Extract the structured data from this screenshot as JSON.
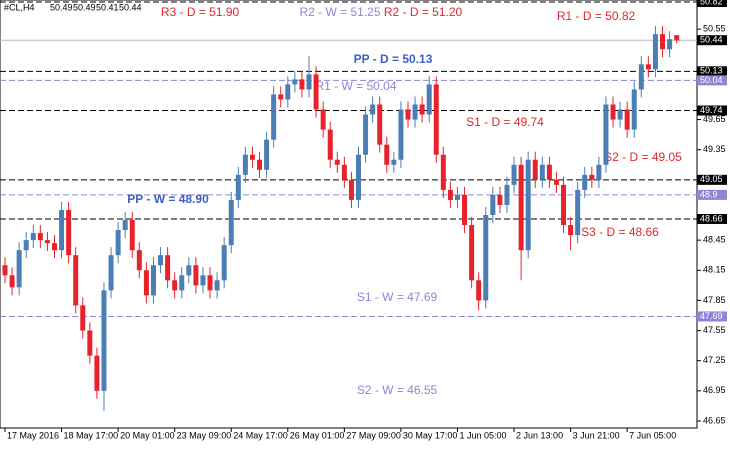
{
  "chart_data": {
    "type": "candlestick",
    "symbol": "#CL,H4",
    "bull_color": "#4a7eb5",
    "bear_color": "#e8222a",
    "categories": [
      "17 May 2016",
      null,
      null,
      null,
      null,
      null,
      null,
      null,
      "18 May 17:00",
      null,
      null,
      null,
      null,
      null,
      null,
      null,
      "20 May 01:00",
      null,
      null,
      null,
      null,
      null,
      null,
      null,
      "23 May 09:00",
      null,
      null,
      null,
      null,
      null,
      null,
      null,
      "24 May 17:00",
      null,
      null,
      null,
      null,
      null,
      null,
      null,
      "26 May 01:00",
      null,
      null,
      null,
      null,
      null,
      null,
      null,
      "27 May 09:00",
      null,
      null,
      null,
      null,
      null,
      null,
      null,
      "30 May 17:00",
      null,
      null,
      null,
      null,
      null,
      null,
      null,
      "1 Jun 05:00",
      null,
      null,
      null,
      null,
      null,
      null,
      null,
      "2 Jun 13:00",
      null,
      null,
      null,
      null,
      null,
      null,
      null,
      "3 Jun 21:00",
      null,
      null,
      null,
      null,
      null,
      null,
      null,
      "7 Jun 05:00",
      null,
      null,
      null,
      null,
      null,
      null,
      null
    ],
    "open": [
      48.2,
      48.1,
      47.98,
      48.35,
      48.45,
      48.52,
      48.45,
      48.42,
      48.35,
      48.75,
      48.3,
      47.8,
      47.55,
      47.3,
      46.95,
      47.95,
      48.3,
      48.55,
      48.65,
      48.35,
      48.15,
      47.9,
      48.2,
      48.3,
      48.05,
      47.95,
      48.1,
      48.2,
      48.0,
      48.1,
      47.95,
      48.05,
      48.4,
      48.85,
      49.1,
      49.3,
      49.25,
      49.15,
      49.45,
      49.9,
      49.85,
      50.0,
      50.05,
      49.95,
      50.1,
      49.75,
      49.55,
      49.25,
      49.2,
      49.05,
      48.85,
      49.3,
      49.7,
      49.8,
      49.4,
      49.2,
      49.25,
      49.75,
      49.65,
      49.8,
      49.7,
      50.0,
      49.3,
      48.95,
      48.85,
      48.9,
      48.6,
      48.05,
      47.85,
      48.7,
      48.9,
      48.8,
      49.0,
      49.2,
      48.35,
      49.25,
      49.05,
      49.2,
      49.05,
      49.0,
      48.6,
      48.5,
      48.95,
      49.1,
      49.05,
      49.2,
      49.8,
      49.65,
      49.75,
      49.55,
      49.95,
      50.2,
      50.15,
      50.5,
      50.35,
      50.49
    ],
    "high": [
      48.28,
      48.18,
      48.43,
      48.53,
      48.6,
      48.6,
      48.53,
      48.5,
      48.83,
      48.83,
      48.38,
      47.88,
      47.63,
      47.38,
      48.03,
      48.38,
      48.63,
      48.73,
      48.73,
      48.43,
      48.23,
      48.28,
      48.38,
      48.38,
      48.13,
      48.18,
      48.28,
      48.28,
      48.18,
      48.18,
      48.13,
      48.48,
      48.93,
      49.18,
      49.38,
      49.38,
      49.33,
      49.53,
      49.98,
      49.98,
      50.08,
      50.13,
      50.13,
      50.28,
      50.18,
      49.83,
      49.63,
      49.33,
      49.28,
      49.13,
      49.38,
      49.78,
      49.88,
      49.88,
      49.48,
      49.33,
      49.83,
      49.83,
      49.88,
      49.88,
      50.08,
      50.08,
      49.38,
      49.03,
      48.98,
      48.98,
      48.68,
      48.13,
      48.78,
      48.98,
      48.98,
      49.08,
      49.28,
      49.28,
      49.33,
      49.33,
      49.28,
      49.28,
      49.13,
      49.08,
      48.68,
      49.03,
      49.18,
      49.18,
      49.28,
      49.88,
      49.88,
      49.83,
      49.83,
      50.03,
      50.28,
      50.28,
      50.58,
      50.58,
      50.53,
      50.49
    ],
    "low": [
      48.02,
      47.9,
      47.9,
      48.27,
      48.37,
      48.37,
      48.34,
      48.27,
      48.27,
      48.22,
      47.72,
      47.47,
      47.22,
      46.87,
      46.75,
      47.87,
      48.22,
      48.47,
      48.27,
      48.07,
      47.82,
      47.82,
      48.12,
      47.97,
      47.87,
      47.87,
      48.02,
      47.92,
      47.92,
      47.87,
      47.87,
      47.97,
      48.32,
      48.77,
      49.02,
      49.17,
      49.07,
      49.07,
      49.37,
      49.77,
      49.77,
      49.92,
      49.87,
      49.87,
      49.67,
      49.47,
      49.17,
      49.12,
      48.97,
      48.77,
      48.77,
      49.22,
      49.62,
      49.32,
      49.12,
      49.12,
      49.17,
      49.57,
      49.57,
      49.62,
      49.62,
      49.22,
      48.87,
      48.77,
      48.77,
      48.52,
      47.97,
      47.75,
      47.77,
      48.62,
      48.72,
      48.72,
      48.92,
      48.05,
      48.27,
      48.97,
      48.97,
      48.97,
      48.92,
      48.52,
      48.35,
      48.42,
      48.87,
      48.97,
      48.97,
      49.12,
      49.57,
      49.57,
      49.47,
      49.47,
      49.87,
      50.07,
      50.07,
      50.27,
      50.27,
      50.41
    ],
    "close": [
      48.1,
      47.98,
      48.35,
      48.45,
      48.52,
      48.45,
      48.42,
      48.35,
      48.75,
      48.3,
      47.8,
      47.55,
      47.3,
      46.95,
      47.95,
      48.3,
      48.55,
      48.65,
      48.35,
      48.15,
      47.9,
      48.2,
      48.3,
      48.05,
      47.95,
      48.1,
      48.2,
      48.0,
      48.1,
      47.95,
      48.05,
      48.4,
      48.85,
      49.1,
      49.3,
      49.25,
      49.15,
      49.45,
      49.9,
      49.85,
      50.0,
      50.05,
      49.95,
      50.1,
      49.75,
      49.55,
      49.25,
      49.2,
      49.05,
      48.85,
      49.3,
      49.7,
      49.8,
      49.4,
      49.2,
      49.25,
      49.75,
      49.65,
      49.8,
      49.7,
      50.0,
      49.3,
      48.95,
      48.85,
      48.9,
      48.6,
      48.05,
      47.85,
      48.7,
      48.9,
      48.8,
      49.0,
      49.2,
      48.35,
      49.25,
      49.05,
      49.2,
      49.05,
      49.0,
      48.6,
      48.5,
      48.95,
      49.1,
      49.05,
      49.2,
      49.8,
      49.65,
      49.75,
      49.55,
      49.95,
      50.2,
      50.15,
      50.5,
      50.35,
      50.45,
      50.44
    ],
    "ylim": [
      46.58,
      50.84
    ],
    "yticks": [
      50.55,
      49.65,
      49.35,
      48.45,
      48.15,
      47.85,
      47.55,
      47.25,
      46.95,
      46.65
    ],
    "last_price": 50.44,
    "levels": [
      {
        "label": "R3 - D = 51.90",
        "value": 51.9,
        "color": "#e0282e",
        "line_color": "#000000"
      },
      {
        "label": "R2 - W = 51.25",
        "value": 51.25,
        "color": "#8c86d4",
        "line_color": "#8c86d4"
      },
      {
        "label": "R2 - D = 51.20",
        "value": 51.2,
        "color": "#e0282e",
        "line_color": "#000000"
      },
      {
        "label": "R1 - D = 50.82",
        "value": 50.82,
        "color": "#e0282e",
        "line_color": "#000000"
      },
      {
        "label": "PP - D = 50.13",
        "value": 50.13,
        "color": "#3a5fc8",
        "line_color": "#000000"
      },
      {
        "label": "R1 - W = 50.04",
        "value": 50.04,
        "color": "#8c86d4",
        "line_color": "#8c86d4"
      },
      {
        "label": "S1 - D = 49.74",
        "value": 49.74,
        "color": "#e0282e",
        "line_color": "#000000"
      },
      {
        "label": "S2 - D = 49.05",
        "value": 49.05,
        "color": "#e0282e",
        "line_color": "#000000"
      },
      {
        "label": "PP - W = 48.90",
        "value": 48.9,
        "color": "#3a5fc8",
        "line_color": "#8c86d4"
      },
      {
        "label": "S3 - D = 48.66",
        "value": 48.66,
        "color": "#e0282e",
        "line_color": "#000000"
      },
      {
        "label": "S1 - W = 47.69",
        "value": 47.69,
        "color": "#8c86d4",
        "line_color": "#8c86d4"
      },
      {
        "label": "S2 - W = 46.55",
        "value": 46.55,
        "color": "#8c86d4",
        "line_color": "#8c86d4"
      }
    ]
  }
}
